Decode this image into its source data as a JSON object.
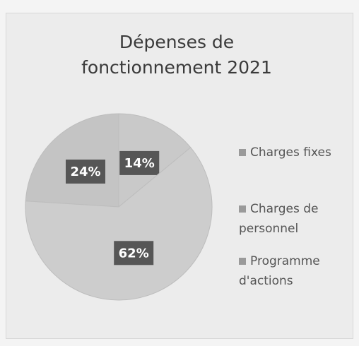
{
  "chart_data": {
    "type": "pie",
    "title": "Dépenses de fonctionnement 2021",
    "categories": [
      "Charges fixes",
      "Charges de personnel",
      "Programme d'actions"
    ],
    "values": [
      14,
      24,
      62
    ],
    "value_labels": [
      "14%",
      "24%",
      "62%"
    ],
    "colors": [
      "#c9c9c9",
      "#c4c4c4",
      "#cdcdcd"
    ],
    "legend": "right"
  }
}
